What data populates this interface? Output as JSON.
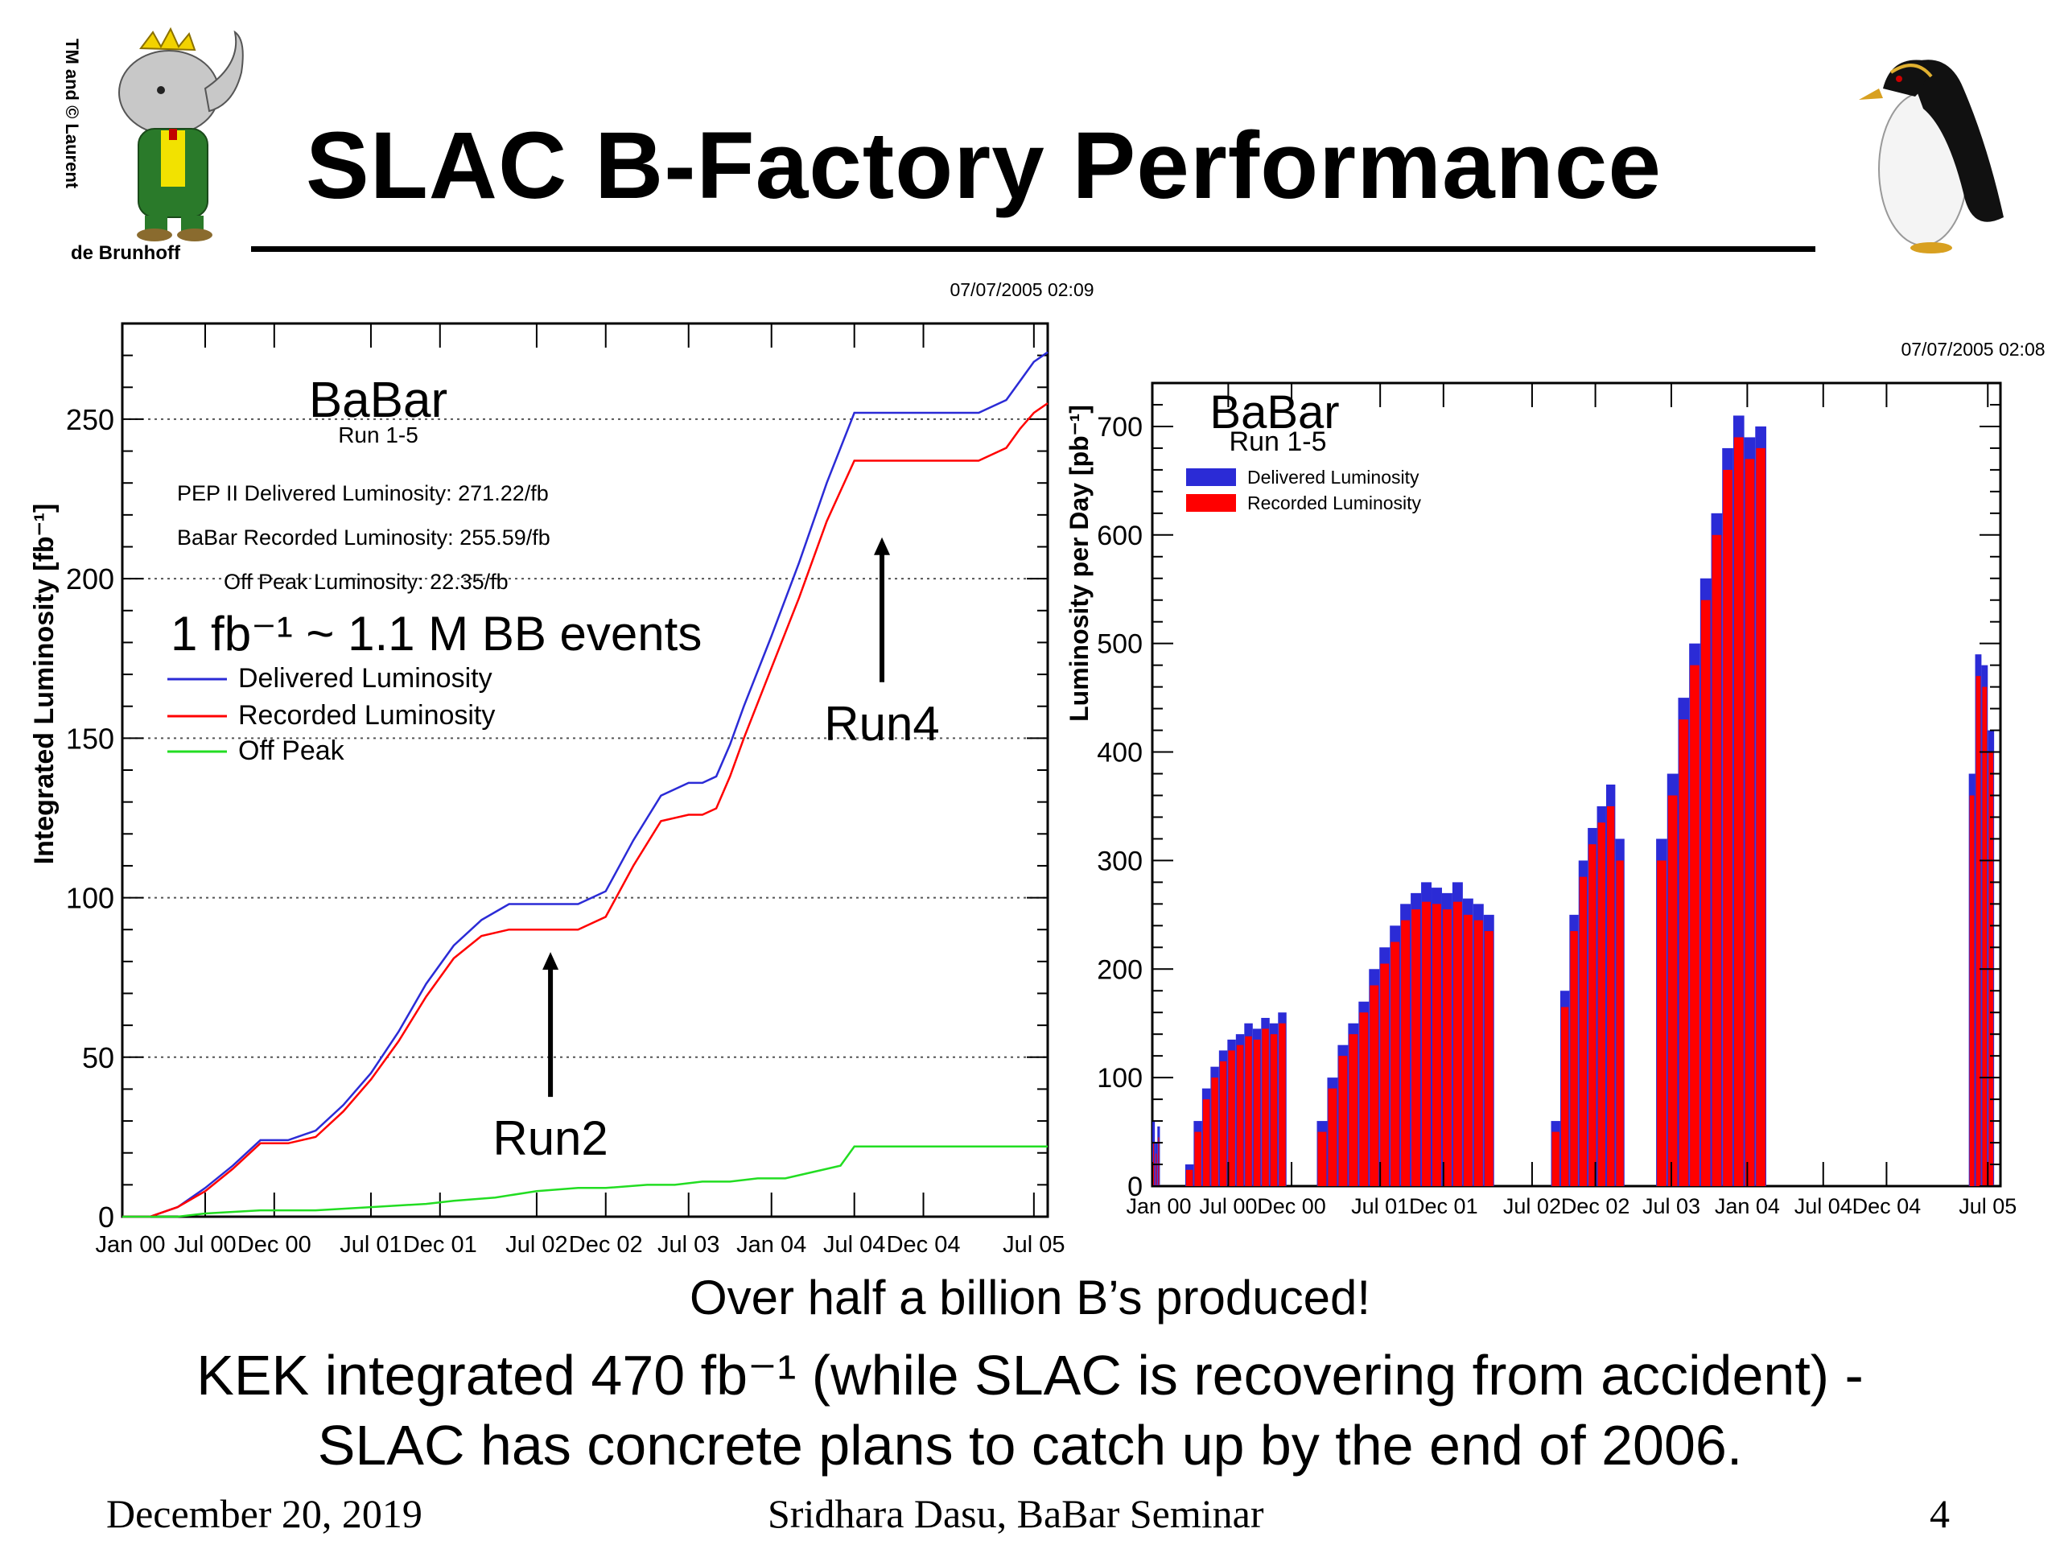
{
  "slide": {
    "title": "SLAC B-Factory Performance",
    "logo_caption_side": "TM and © Laurent",
    "logo_caption_bottom": "de Brunhoff"
  },
  "bottom_text": {
    "line1": "Over half a billion B’s produced!",
    "line2": "KEK integrated 470 fb⁻¹ (while SLAC is recovering from accident) -",
    "line3": "SLAC has concrete plans to catch up by the end of 2006."
  },
  "footer": {
    "date": "December 20, 2019",
    "author": "Sridhara Dasu, BaBar Seminar",
    "page": "4"
  },
  "colors": {
    "delivered": "#2b2bd6",
    "recorded": "#ff0000",
    "offpeak": "#22dd22",
    "elephant_suit": "#2a7a2a",
    "elephant_vest": "#f2e200"
  },
  "chart_data": [
    {
      "type": "line",
      "timestamp": "07/07/2005 02:09",
      "brand": "BaBar",
      "brand_sub": "Run 1-5",
      "ylabel": "Integrated Luminosity [fb⁻¹]",
      "ylim": [
        0,
        280
      ],
      "yticks": [
        0,
        50,
        100,
        150,
        200,
        250
      ],
      "xlim": [
        0,
        67
      ],
      "xtick_positions": [
        0,
        6,
        11,
        18,
        23,
        30,
        35,
        41,
        47,
        53,
        58,
        66
      ],
      "xtick_labels": [
        "Jan 00",
        "Jul 00",
        "Dec 00",
        "Jul 01",
        "Dec 01",
        "Jul 02",
        "Dec 02",
        "Jul 03",
        "Jan 04",
        "Jul 04",
        "Dec 04",
        "Jul 05"
      ],
      "grid_dotted_y": [
        50,
        100,
        150,
        200,
        250
      ],
      "info_lines": [
        "PEP II Delivered Luminosity: 271.22/fb",
        "BaBar Recorded Luminosity: 255.59/fb",
        "Off Peak Luminosity: 22.35/fb"
      ],
      "big_note": "1 fb⁻¹ ~ 1.1 M BB events",
      "legend_position": "left",
      "series": [
        {
          "name": "Delivered Luminosity",
          "x": [
            0,
            2,
            4,
            6,
            8,
            10,
            11,
            12,
            14,
            16,
            18,
            20,
            22,
            24,
            26,
            28,
            30,
            31,
            33,
            35,
            37,
            39,
            41,
            42,
            43,
            44,
            45,
            47,
            49,
            51,
            53,
            55,
            56,
            58,
            60,
            62,
            64,
            65,
            66,
            67
          ],
          "y": [
            0,
            0,
            3,
            9,
            16,
            24,
            24,
            24,
            27,
            35,
            45,
            58,
            73,
            85,
            93,
            98,
            98,
            98,
            98,
            102,
            118,
            132,
            136,
            136,
            138,
            148,
            160,
            182,
            205,
            230,
            252,
            252,
            252,
            252,
            252,
            252,
            256,
            262,
            268,
            271
          ]
        },
        {
          "name": "Recorded Luminosity",
          "x": [
            0,
            2,
            4,
            6,
            8,
            10,
            11,
            12,
            14,
            16,
            18,
            20,
            22,
            24,
            26,
            28,
            30,
            31,
            33,
            35,
            37,
            39,
            41,
            42,
            43,
            44,
            45,
            47,
            49,
            51,
            53,
            55,
            56,
            58,
            60,
            62,
            64,
            65,
            66,
            67
          ],
          "y": [
            0,
            0,
            3,
            8,
            15,
            23,
            23,
            23,
            25,
            33,
            43,
            55,
            69,
            81,
            88,
            90,
            90,
            90,
            90,
            94,
            110,
            124,
            126,
            126,
            128,
            138,
            150,
            172,
            194,
            218,
            237,
            237,
            237,
            237,
            237,
            237,
            241,
            247,
            252,
            255
          ]
        },
        {
          "name": "Off Peak",
          "x": [
            0,
            4,
            6,
            10,
            14,
            18,
            22,
            24,
            27,
            30,
            33,
            35,
            38,
            40,
            42,
            44,
            46,
            48,
            50,
            52,
            53,
            55,
            58,
            62,
            67
          ],
          "y": [
            0,
            0,
            1,
            2,
            2,
            3,
            4,
            5,
            6,
            8,
            9,
            9,
            10,
            10,
            11,
            11,
            12,
            12,
            14,
            16,
            22,
            22,
            22,
            22,
            22
          ]
        }
      ],
      "annotations": [
        {
          "label": "Run2",
          "x": 31,
          "y": 88
        },
        {
          "label": "Run4",
          "x": 55,
          "y": 218
        }
      ]
    },
    {
      "type": "bar",
      "timestamp": "07/07/2005 02:08",
      "brand": "BaBar",
      "brand_sub": "Run 1-5",
      "ylabel": "Luminosity per Day [pb⁻¹]",
      "ylim": [
        0,
        740
      ],
      "yticks": [
        0,
        100,
        200,
        300,
        400,
        500,
        600,
        700
      ],
      "xlim": [
        0,
        67
      ],
      "xtick_positions": [
        0,
        6,
        11,
        18,
        23,
        30,
        35,
        41,
        47,
        53,
        58,
        66
      ],
      "xtick_labels": [
        "Jan 00",
        "Jul 00",
        "Dec 00",
        "Jul 01",
        "Dec 01",
        "Jul 02",
        "Dec 02",
        "Jul 03",
        "Jan 04",
        "Jul 04",
        "Dec 04",
        "Jul 05"
      ],
      "legend_position": "top-left",
      "runs": [
        {
          "x_start": 0.0,
          "x_end": 0.6,
          "delivered": [
            60,
            40,
            55
          ],
          "recorded": [
            40,
            30,
            45
          ]
        },
        {
          "x_start": 2.6,
          "x_end": 10.6,
          "delivered": [
            20,
            60,
            90,
            110,
            125,
            135,
            140,
            150,
            145,
            155,
            150,
            160
          ],
          "recorded": [
            15,
            50,
            80,
            100,
            115,
            125,
            130,
            138,
            135,
            145,
            140,
            150
          ]
        },
        {
          "x_start": 13.0,
          "x_end": 27.0,
          "delivered": [
            60,
            100,
            130,
            150,
            170,
            200,
            220,
            240,
            260,
            270,
            280,
            275,
            270,
            280,
            265,
            260,
            250
          ],
          "recorded": [
            50,
            90,
            120,
            140,
            160,
            185,
            205,
            225,
            245,
            255,
            262,
            260,
            255,
            262,
            250,
            245,
            235
          ]
        },
        {
          "x_start": 31.5,
          "x_end": 37.3,
          "delivered": [
            60,
            180,
            250,
            300,
            330,
            350,
            370,
            320
          ],
          "recorded": [
            50,
            165,
            235,
            285,
            315,
            335,
            350,
            300
          ]
        },
        {
          "x_start": 39.8,
          "x_end": 48.5,
          "delivered": [
            320,
            380,
            450,
            500,
            560,
            620,
            680,
            710,
            690,
            700
          ],
          "recorded": [
            300,
            360,
            430,
            480,
            540,
            600,
            660,
            690,
            670,
            680
          ]
        },
        {
          "x_start": 64.5,
          "x_end": 66.5,
          "delivered": [
            380,
            490,
            480,
            420
          ],
          "recorded": [
            360,
            470,
            460,
            400
          ]
        }
      ],
      "series": [
        {
          "name": "Delivered Luminosity"
        },
        {
          "name": "Recorded Luminosity"
        }
      ]
    }
  ]
}
